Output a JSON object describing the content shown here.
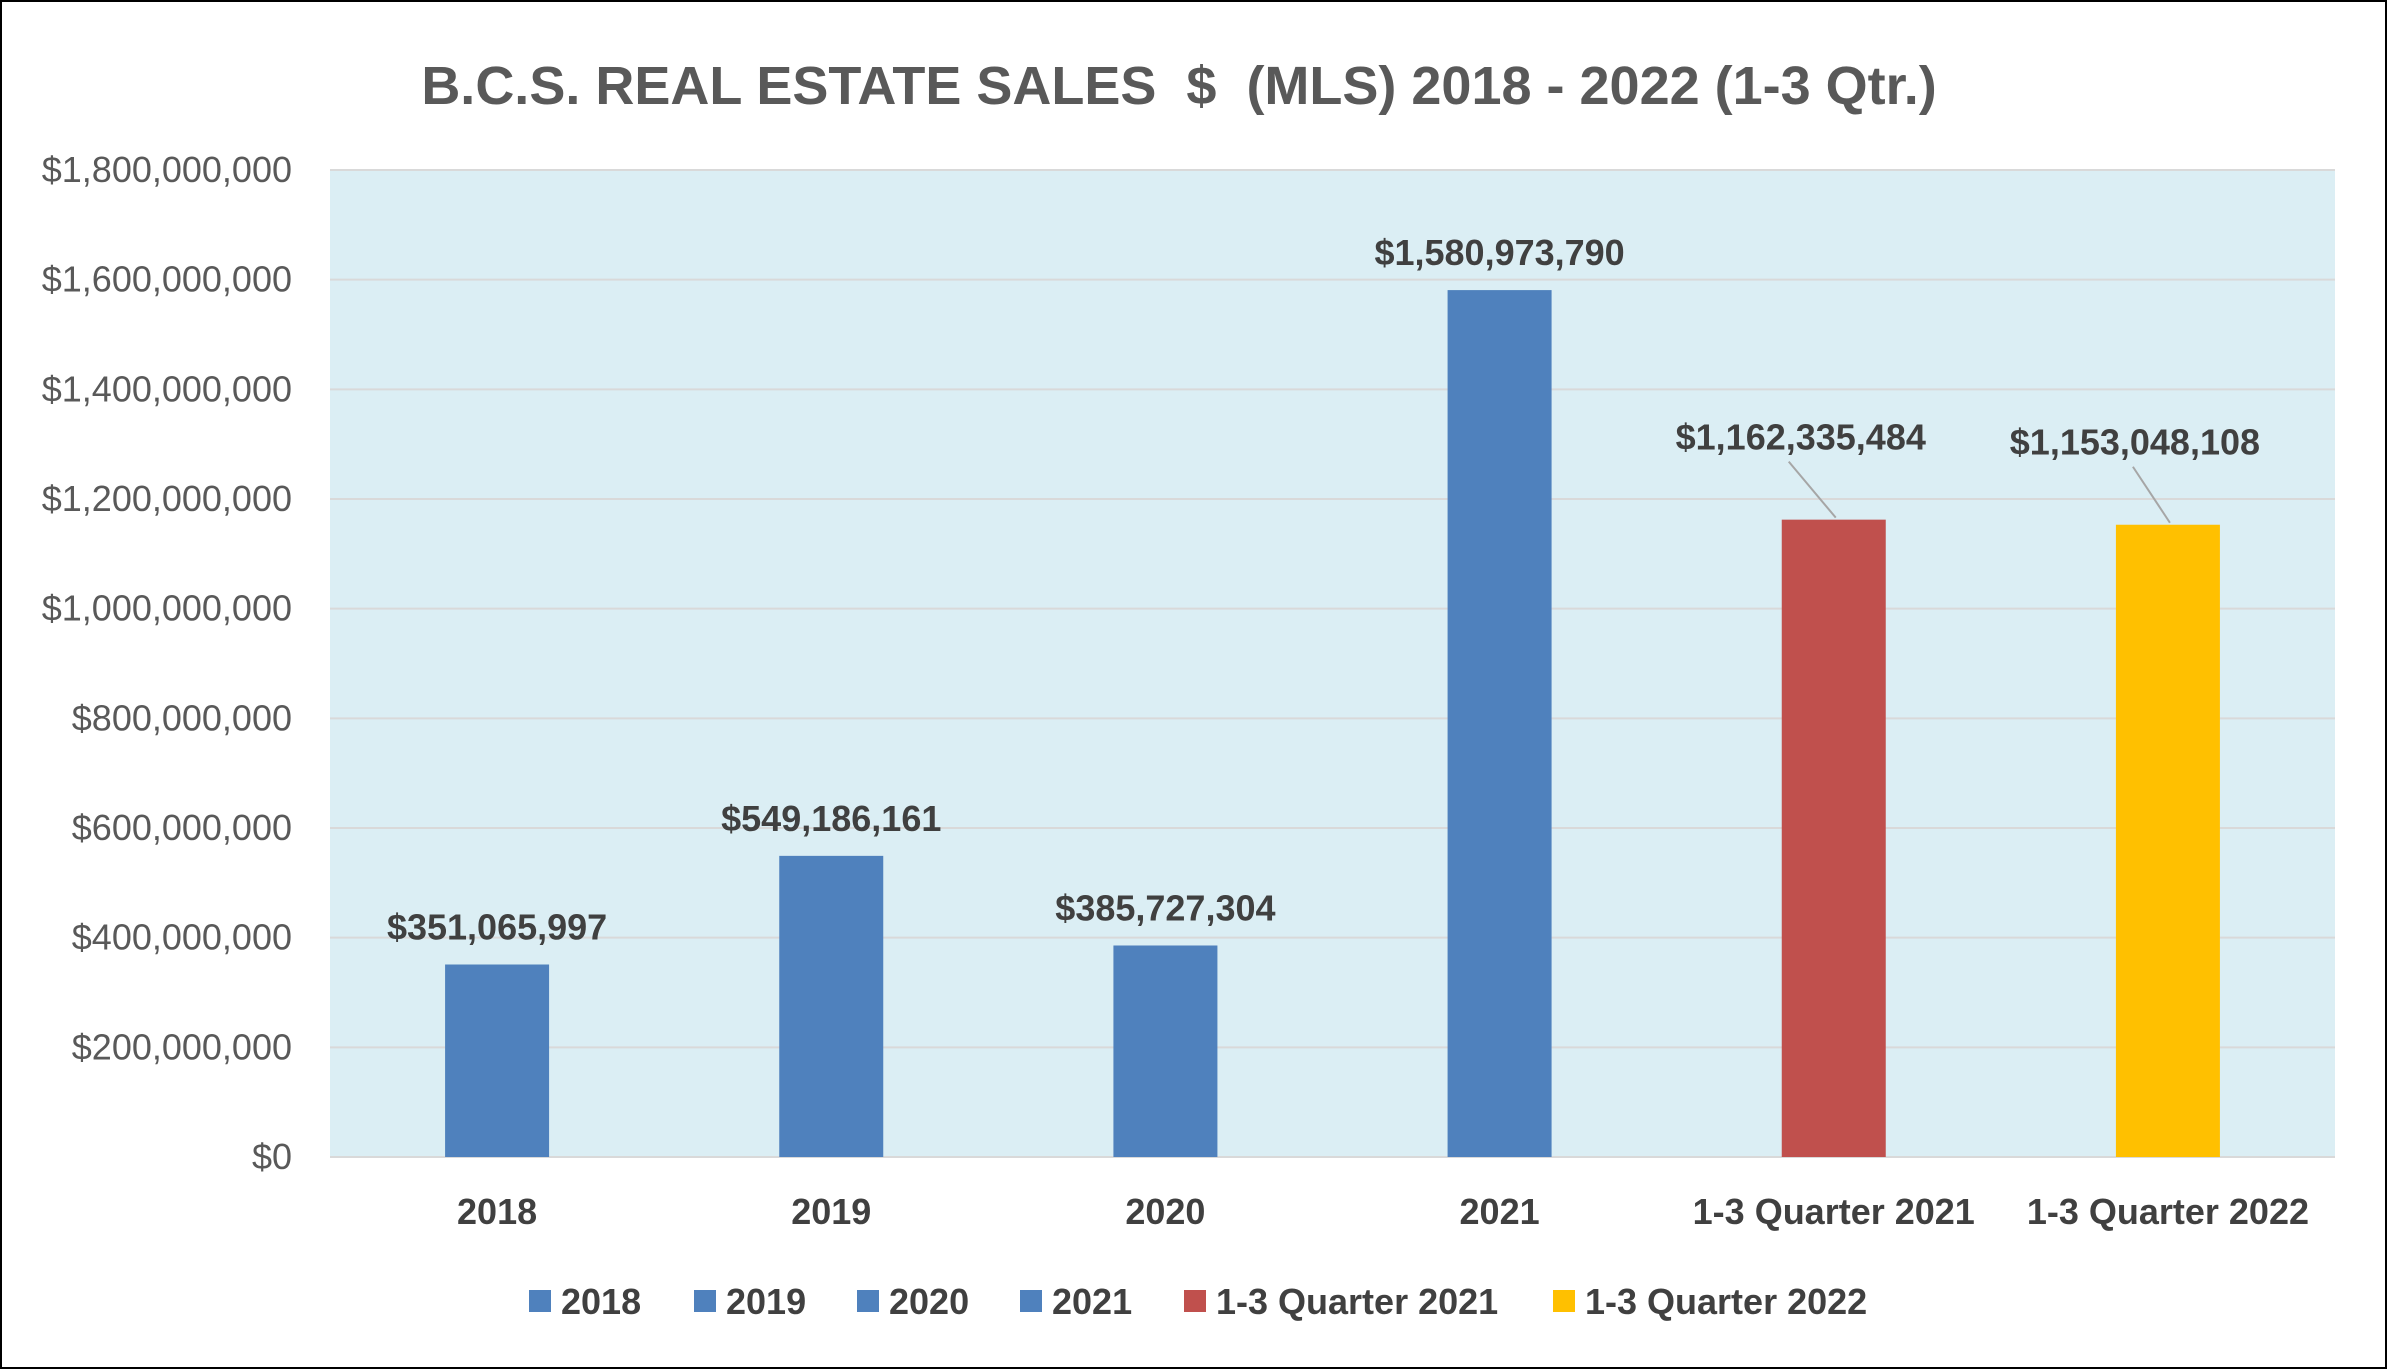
{
  "chart_data": {
    "type": "bar",
    "title": "B.C.S. REAL ESTATE SALES  $  (MLS) 2018 - 2022 (1-3 Qtr.)",
    "xlabel": "",
    "ylabel": "",
    "categories": [
      "2018",
      "2019",
      "2020",
      "2021",
      "1-3 Quarter 2021",
      "1-3 Quarter 2022"
    ],
    "values": [
      351065997,
      549186161,
      385727304,
      1580973790,
      1162335484,
      1153048108
    ],
    "data_labels": [
      "$351,065,997",
      "$549,186,161",
      "$385,727,304",
      "$1,580,973,790",
      "$1,162,335,484",
      "$1,153,048,108"
    ],
    "colors": [
      "#4f81bd",
      "#4f81bd",
      "#4f81bd",
      "#4f81bd",
      "#c0504d",
      "#ffc000"
    ],
    "ylim": [
      0,
      1800000000
    ],
    "yticks": [
      0,
      200000000,
      400000000,
      600000000,
      800000000,
      1000000000,
      1200000000,
      1400000000,
      1600000000,
      1800000000
    ],
    "ytick_labels": [
      "$0",
      "$200,000,000",
      "$400,000,000",
      "$600,000,000",
      "$800,000,000",
      "$1,000,000,000",
      "$1,200,000,000",
      "$1,400,000,000",
      "$1,600,000,000",
      "$1,800,000,000"
    ],
    "grid": true,
    "plot_background": "#dbeef4",
    "gridline_color": "#d9d9d9",
    "legend_position": "bottom",
    "legend": [
      {
        "label": "2018",
        "color": "#4f81bd"
      },
      {
        "label": "2019",
        "color": "#4f81bd"
      },
      {
        "label": "2020",
        "color": "#4f81bd"
      },
      {
        "label": "2021",
        "color": "#4f81bd"
      },
      {
        "label": "1-3 Quarter 2021",
        "color": "#c0504d"
      },
      {
        "label": "1-3 Quarter 2022",
        "color": "#ffc000"
      }
    ]
  }
}
